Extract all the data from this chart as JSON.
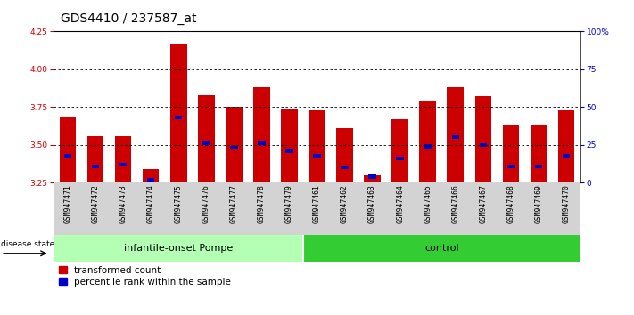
{
  "title": "GDS4410 / 237587_at",
  "samples": [
    "GSM947471",
    "GSM947472",
    "GSM947473",
    "GSM947474",
    "GSM947475",
    "GSM947476",
    "GSM947477",
    "GSM947478",
    "GSM947479",
    "GSM947461",
    "GSM947462",
    "GSM947463",
    "GSM947464",
    "GSM947465",
    "GSM947466",
    "GSM947467",
    "GSM947468",
    "GSM947469",
    "GSM947470"
  ],
  "red_values": [
    3.68,
    3.56,
    3.56,
    3.34,
    4.17,
    3.83,
    3.75,
    3.88,
    3.74,
    3.73,
    3.61,
    3.3,
    3.67,
    3.79,
    3.88,
    3.82,
    3.63,
    3.63,
    3.73
  ],
  "blue_values": [
    3.43,
    3.36,
    3.37,
    3.27,
    3.68,
    3.51,
    3.48,
    3.51,
    3.46,
    3.43,
    3.35,
    3.29,
    3.41,
    3.49,
    3.55,
    3.5,
    3.36,
    3.36,
    3.43
  ],
  "bar_bottom": 3.25,
  "ylim": [
    3.25,
    4.25
  ],
  "y2lim": [
    0,
    100
  ],
  "yticks": [
    3.25,
    3.5,
    3.75,
    4.0,
    4.25
  ],
  "y2ticks": [
    0,
    25,
    50,
    75,
    100
  ],
  "y2ticklabels": [
    "0",
    "25",
    "50",
    "75",
    "100%"
  ],
  "grid_values": [
    3.5,
    3.75,
    4.0
  ],
  "bar_color_red": "#cc0000",
  "bar_color_blue": "#0000cc",
  "bar_width": 0.6,
  "group1_label": "infantile-onset Pompe",
  "group2_label": "control",
  "group1_indices_count": 9,
  "group2_indices_count": 10,
  "group1_color": "#b3ffb3",
  "group2_color": "#33cc33",
  "tick_bg_color": "#d3d3d3",
  "plot_bg_color": "#ffffff",
  "title_fontsize": 10,
  "tick_fontsize": 6.5,
  "y_label_color": "#cc0000",
  "y2_label_color": "#0000cc",
  "disease_state_label": "disease state",
  "legend1_label": "transformed count",
  "legend2_label": "percentile rank within the sample"
}
